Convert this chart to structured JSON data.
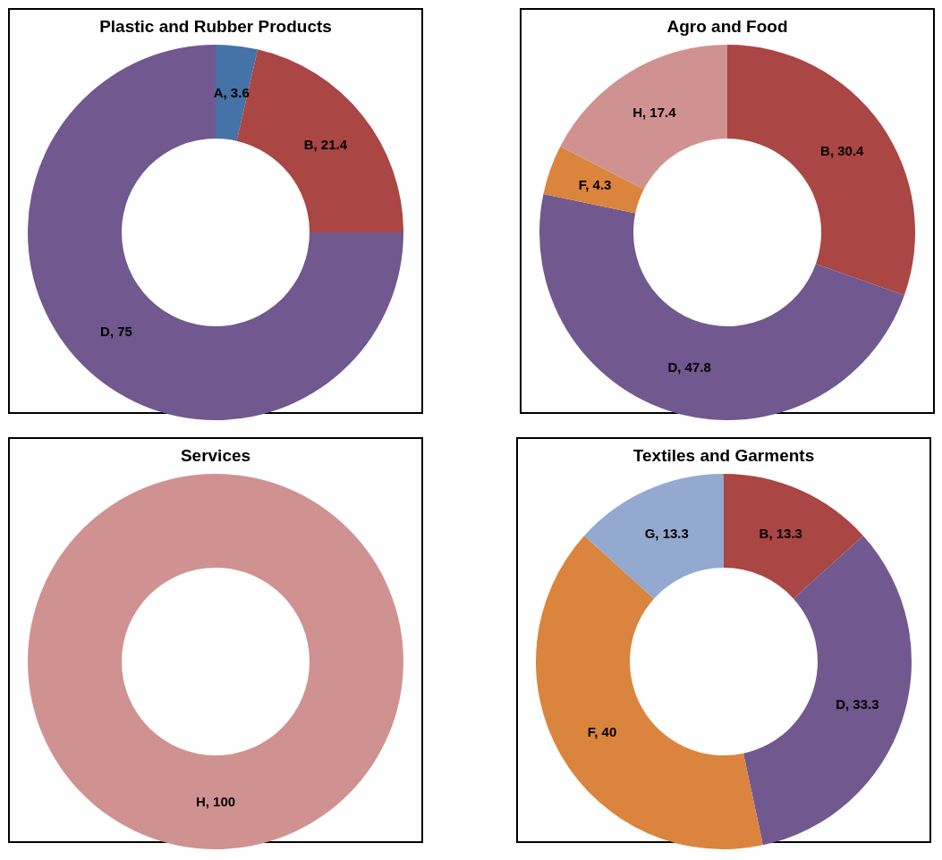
{
  "chart_data": [
    {
      "type": "donut",
      "title": "Plastic and Rubber Products",
      "categories": [
        "A, 3.6",
        "B, 21.4",
        "D, 75"
      ],
      "values": [
        3.6,
        21.4,
        75
      ],
      "colors": [
        "#4572a7",
        "#aa4643",
        "#71588f"
      ]
    },
    {
      "type": "donut",
      "title": "Agro and Food",
      "categories": [
        "B, 30.4",
        "D, 47.8",
        "F, 4.3",
        "H, 17.4"
      ],
      "values": [
        30.4,
        47.8,
        4.3,
        17.4
      ],
      "colors": [
        "#aa4643",
        "#71588f",
        "#db843d",
        "#d09291"
      ]
    },
    {
      "type": "donut",
      "title": "Services",
      "categories": [
        "H, 100"
      ],
      "values": [
        100
      ],
      "colors": [
        "#d09291"
      ]
    },
    {
      "type": "donut",
      "title": "Textiles and Garments",
      "categories": [
        "B, 13.3",
        "D, 33.3",
        "F, 40",
        "G, 13.3"
      ],
      "values": [
        13.3,
        33.3,
        40,
        13.3
      ],
      "colors": [
        "#aa4643",
        "#71588f",
        "#db843d",
        "#93a9cf"
      ]
    }
  ]
}
